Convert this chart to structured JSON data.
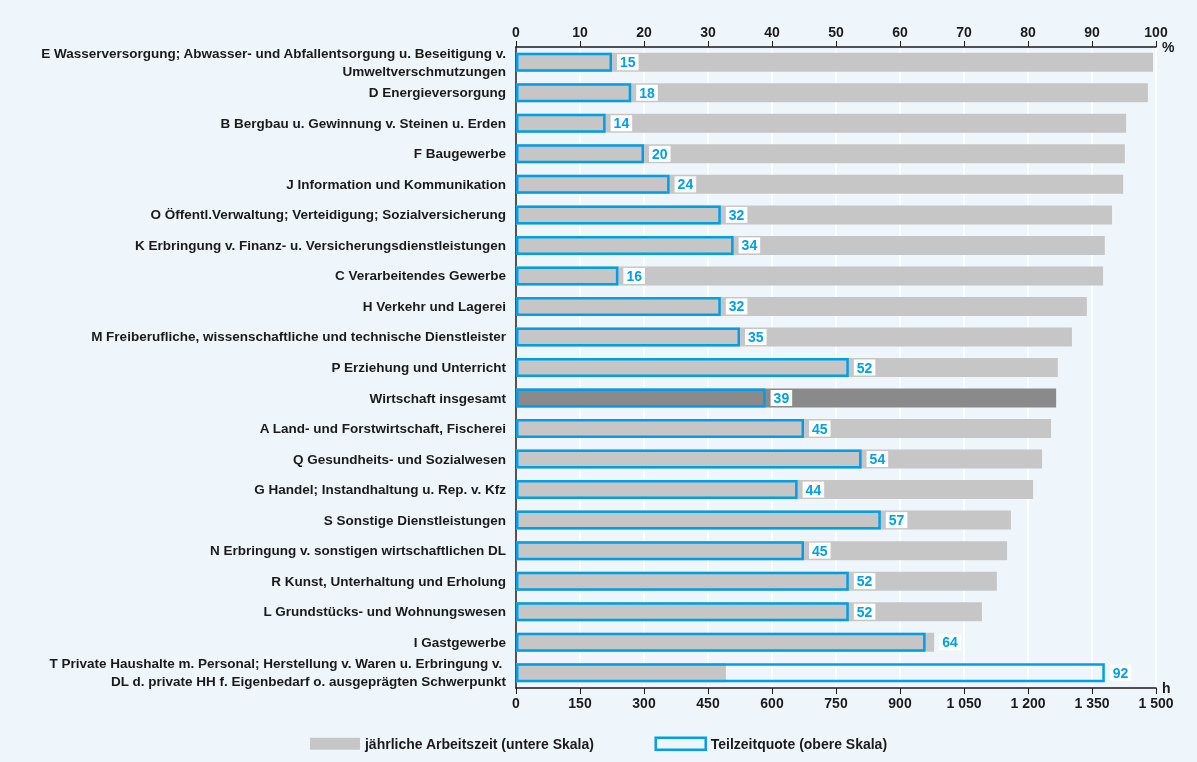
{
  "chart_data": {
    "type": "bar",
    "orientation": "horizontal",
    "categories": [
      "E Wasserversorgung; Abwasser- und Abfallentsorgung u. Beseitigung v. Umweltverschmutzungen",
      "D Energieversorgung",
      "B Bergbau u. Gewinnung v. Steinen u. Erden",
      "F Baugewerbe",
      "J Information und Kommunikation",
      "O Öffentl.Verwaltung; Verteidigung; Sozialversicherung",
      "K Erbringung v. Finanz- u. Versicherungsdienstleistungen",
      "C Verarbeitendes Gewerbe",
      "H Verkehr und Lagerei",
      "M Freiberufliche, wissenschaftliche und technische Dienstleister",
      "P Erziehung und Unterricht",
      "Wirtschaft insgesamt",
      "A Land- und Forstwirtschaft, Fischerei",
      "Q Gesundheits- und Sozialwesen",
      "G Handel; Instandhaltung u. Rep. v. Kfz",
      "S Sonstige Dienstleistungen",
      "N Erbringung v. sonstigen wirtschaftlichen DL",
      "R Kunst, Unterhaltung und Erholung",
      "L Grundstücks- und Wohnungswesen",
      "I Gastgewerbe",
      "T Private Haushalte m. Personal; Herstellung v. Waren u. Erbringung v. DL d. private HH f. Eigenbedarf o. ausgeprägten Schwerpunkt"
    ],
    "series": [
      {
        "name": "jährliche Arbeitszeit (untere Skala)",
        "color": "#c6c6c6",
        "colors": [
          "#c6c6c6",
          "#c6c6c6",
          "#c6c6c6",
          "#c6c6c6",
          "#c6c6c6",
          "#c6c6c6",
          "#c6c6c6",
          "#c6c6c6",
          "#c6c6c6",
          "#c6c6c6",
          "#c6c6c6",
          "#8a8a8a",
          "#c6c6c6",
          "#c6c6c6",
          "#c6c6c6",
          "#c6c6c6",
          "#c6c6c6",
          "#c6c6c6",
          "#c6c6c6",
          "#c6c6c6",
          "#c6c6c6"
        ],
        "values": [
          1493,
          1481,
          1430,
          1427,
          1423,
          1397,
          1380,
          1376,
          1338,
          1303,
          1270,
          1266,
          1254,
          1233,
          1212,
          1160,
          1151,
          1127,
          1092,
          980,
          492
        ]
      },
      {
        "name": "Teilzeitquote (obere Skala)",
        "color": "#009fe3",
        "axis": "x2",
        "values": [
          15,
          18,
          14,
          20,
          24,
          32,
          34,
          16,
          32,
          35,
          52,
          39,
          45,
          54,
          44,
          57,
          45,
          52,
          52,
          64,
          92
        ],
        "value_labels": [
          "15",
          "18",
          "14",
          "20",
          "24",
          "32",
          "34",
          "16",
          "32",
          "35",
          "52",
          "39",
          "45",
          "54",
          "44",
          "57",
          "45",
          "52",
          "52",
          "64",
          "92"
        ]
      }
    ],
    "xlabel": "h",
    "x2label": "%",
    "xlim": [
      0,
      1500
    ],
    "xticks": [
      0,
      150,
      300,
      450,
      600,
      750,
      900,
      {
        "value": 1050,
        "label": "1 050"
      },
      {
        "value": 1200,
        "label": "1 200"
      },
      {
        "value": 1350,
        "label": "1 350"
      },
      {
        "value": 1500,
        "label": "1 500"
      }
    ],
    "x2lim": [
      0,
      100
    ],
    "x2ticks": [
      0,
      10,
      20,
      30,
      40,
      50,
      60,
      70,
      80,
      90,
      100
    ],
    "grid": "x",
    "legend": "bottom"
  }
}
